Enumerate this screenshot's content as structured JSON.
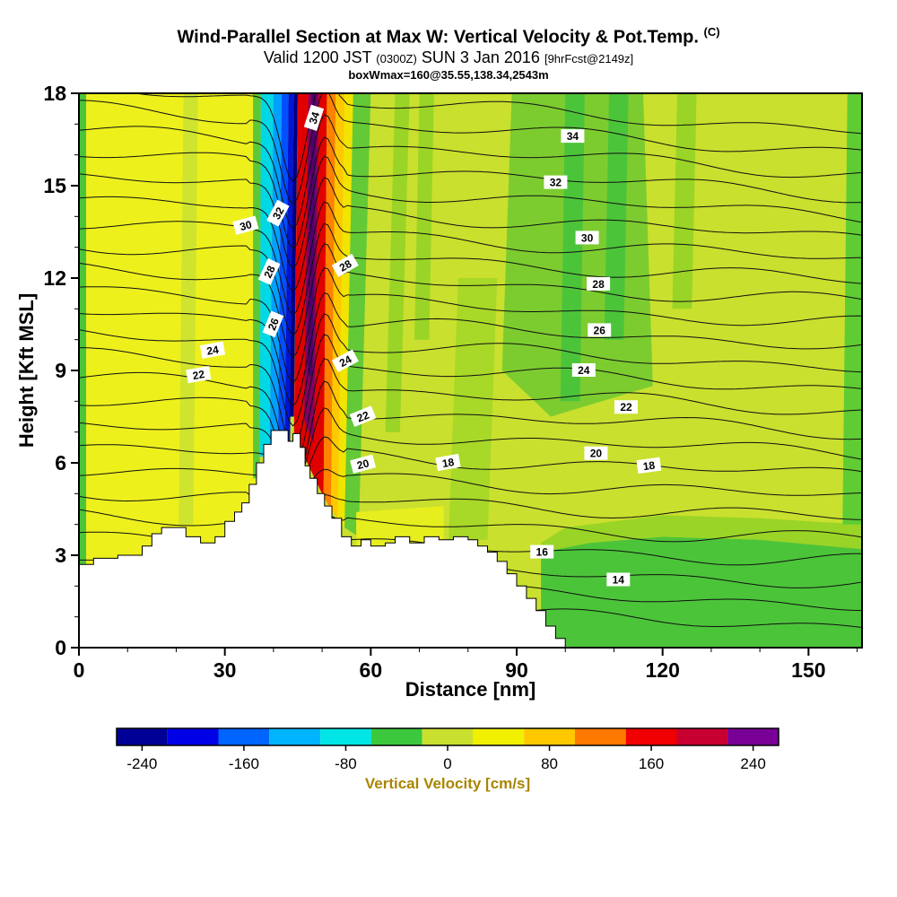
{
  "header": {
    "title_main": "Wind-Parallel Section at Max W: Vertical Velocity & Pot.Temp.",
    "title_unit": "(C)",
    "valid_prefix": "Valid 1200 JST",
    "valid_paren": "(0300Z)",
    "valid_date": "SUN 3 Jan 2016",
    "valid_fcst": "[9hrFcst@2149z]",
    "info_line": "boxWmax=160@35.55,138.34,2543m"
  },
  "axes": {
    "x": {
      "label": "Distance [nm]",
      "min": 0,
      "max": 161,
      "major_ticks": [
        0,
        30,
        60,
        90,
        120,
        150
      ],
      "minor_step": 10
    },
    "y": {
      "label": "Height [Kft MSL]",
      "min": 0,
      "max": 18,
      "major_ticks": [
        0,
        3,
        6,
        9,
        12,
        15,
        18
      ],
      "minor_step": 1
    }
  },
  "colorbar": {
    "label": "Vertical Velocity [cm/s]",
    "value_range": [
      -260,
      260
    ],
    "tick_values": [
      -240,
      -160,
      -80,
      0,
      80,
      160,
      240
    ],
    "segments": [
      {
        "from": -260,
        "to": -220,
        "color": "#000096"
      },
      {
        "from": -220,
        "to": -180,
        "color": "#0000e6"
      },
      {
        "from": -180,
        "to": -140,
        "color": "#0064ff"
      },
      {
        "from": -140,
        "to": -100,
        "color": "#00b4ff"
      },
      {
        "from": -100,
        "to": -60,
        "color": "#00e6e6"
      },
      {
        "from": -60,
        "to": -20,
        "color": "#3cc83c"
      },
      {
        "from": -20,
        "to": 20,
        "color": "#c9e02e"
      },
      {
        "from": 20,
        "to": 60,
        "color": "#f0f000"
      },
      {
        "from": 60,
        "to": 100,
        "color": "#ffc800"
      },
      {
        "from": 100,
        "to": 140,
        "color": "#ff7800"
      },
      {
        "from": 140,
        "to": 180,
        "color": "#f00000"
      },
      {
        "from": 180,
        "to": 220,
        "color": "#c80032"
      },
      {
        "from": 220,
        "to": 260,
        "color": "#780096"
      }
    ]
  },
  "chart_data": {
    "type": "heatmap",
    "title": "Wind-Parallel Section at Max W: Vertical Velocity & Pot.Temp. (C)",
    "subtitle": "Valid 1200 JST (0300Z) SUN 3 Jan 2016 [9hrFcst@2149z]",
    "annotation": "boxWmax=160@35.55,138.34,2543m",
    "xlabel": "Distance [nm]",
    "ylabel": "Height [Kft MSL]",
    "xlim": [
      0,
      161
    ],
    "ylim": [
      0,
      18
    ],
    "xticks": [
      0,
      30,
      60,
      90,
      120,
      150
    ],
    "yticks": [
      0,
      3,
      6,
      9,
      12,
      15,
      18
    ],
    "shaded_field": "Vertical Velocity [cm/s]",
    "base_color": "#c9e02e",
    "contour_field": {
      "name": "Potential Temperature [C]",
      "interval": 1,
      "levels": [
        12,
        13,
        14,
        15,
        16,
        17,
        18,
        19,
        20,
        21,
        22,
        23,
        24,
        25,
        26,
        27,
        28,
        29,
        30,
        31,
        32,
        33,
        34,
        35
      ],
      "labeled_levels": [
        14,
        16,
        18,
        20,
        22,
        24,
        26,
        28,
        30,
        32,
        34
      ]
    },
    "contour_labels": [
      {
        "v": "34",
        "x": 48.4,
        "h": 17.2,
        "r": -72
      },
      {
        "v": "34",
        "x": 101.5,
        "h": 16.6,
        "r": 0
      },
      {
        "v": "32",
        "x": 41.0,
        "h": 14.1,
        "r": -62
      },
      {
        "v": "32",
        "x": 98.0,
        "h": 15.1,
        "r": 0
      },
      {
        "v": "30",
        "x": 34.3,
        "h": 13.7,
        "r": -15
      },
      {
        "v": "30",
        "x": 104.5,
        "h": 13.3,
        "r": 0
      },
      {
        "v": "28",
        "x": 39.2,
        "h": 12.2,
        "r": -65
      },
      {
        "v": "28",
        "x": 54.8,
        "h": 12.4,
        "r": -30
      },
      {
        "v": "28",
        "x": 106.8,
        "h": 11.8,
        "r": 0
      },
      {
        "v": "26",
        "x": 40.0,
        "h": 10.5,
        "r": -68
      },
      {
        "v": "26",
        "x": 107.0,
        "h": 10.3,
        "r": 0
      },
      {
        "v": "24",
        "x": 27.5,
        "h": 9.65,
        "r": -10
      },
      {
        "v": "24",
        "x": 54.8,
        "h": 9.3,
        "r": -28
      },
      {
        "v": "24",
        "x": 103.8,
        "h": 9.0,
        "r": 0
      },
      {
        "v": "22",
        "x": 24.6,
        "h": 8.85,
        "r": -10
      },
      {
        "v": "22",
        "x": 58.4,
        "h": 7.5,
        "r": -22
      },
      {
        "v": "22",
        "x": 112.5,
        "h": 7.8,
        "r": 0
      },
      {
        "v": "20",
        "x": 58.4,
        "h": 5.95,
        "r": -15
      },
      {
        "v": "20",
        "x": 106.3,
        "h": 6.3,
        "r": 0
      },
      {
        "v": "18",
        "x": 75.9,
        "h": 6.0,
        "r": -10
      },
      {
        "v": "18",
        "x": 117.2,
        "h": 5.9,
        "r": -8
      },
      {
        "v": "16",
        "x": 95.2,
        "h": 3.1,
        "r": 0
      },
      {
        "v": "14",
        "x": 110.9,
        "h": 2.2,
        "r": 0
      }
    ],
    "terrain_profile": [
      [
        0,
        2.7
      ],
      [
        3,
        2.9
      ],
      [
        8,
        3.0
      ],
      [
        13,
        3.3
      ],
      [
        15,
        3.7
      ],
      [
        17,
        3.9
      ],
      [
        20,
        3.9
      ],
      [
        22,
        3.6
      ],
      [
        25,
        3.4
      ],
      [
        28,
        3.6
      ],
      [
        30,
        4.1
      ],
      [
        32,
        4.4
      ],
      [
        33.5,
        4.7
      ],
      [
        35,
        5.3
      ],
      [
        36.5,
        6.0
      ],
      [
        38,
        6.6
      ],
      [
        39.5,
        7.05
      ],
      [
        43,
        6.7
      ],
      [
        44,
        6.95
      ],
      [
        45.5,
        6.5
      ],
      [
        46.5,
        5.9
      ],
      [
        47.5,
        5.5
      ],
      [
        49,
        5.0
      ],
      [
        50.5,
        4.6
      ],
      [
        52,
        4.2
      ],
      [
        54,
        3.6
      ],
      [
        56,
        3.3
      ],
      [
        58,
        3.5
      ],
      [
        60,
        3.3
      ],
      [
        63,
        3.4
      ],
      [
        65,
        3.6
      ],
      [
        68,
        3.4
      ],
      [
        71,
        3.6
      ],
      [
        74,
        3.5
      ],
      [
        77,
        3.6
      ],
      [
        80,
        3.5
      ],
      [
        82,
        3.3
      ],
      [
        84,
        3.1
      ],
      [
        86,
        2.8
      ],
      [
        88,
        2.4
      ],
      [
        90,
        2.0
      ],
      [
        92,
        1.6
      ],
      [
        94,
        1.2
      ],
      [
        96,
        0.7
      ],
      [
        98,
        0.3
      ],
      [
        100,
        0
      ]
    ],
    "fill_regions": [
      {
        "name": "left-edge-green",
        "color": "#4cc43a",
        "pts": [
          [
            0,
            0
          ],
          [
            1.5,
            0
          ],
          [
            1.5,
            18
          ],
          [
            0,
            18
          ]
        ]
      },
      {
        "name": "windward-yellow-band",
        "color": "#eef01c",
        "pts": [
          [
            1.5,
            0
          ],
          [
            37,
            0
          ],
          [
            37,
            18
          ],
          [
            1.5,
            18
          ]
        ]
      },
      {
        "name": "yellow-band-streak",
        "color": "#cfe42e",
        "pts": [
          [
            20.5,
            4
          ],
          [
            23.5,
            4
          ],
          [
            24.5,
            18
          ],
          [
            21.5,
            18
          ]
        ]
      },
      {
        "name": "pre-wave-green-strip",
        "color": "#5cc838",
        "pts": [
          [
            35.8,
            5.5
          ],
          [
            37.2,
            5.5
          ],
          [
            37.4,
            18
          ],
          [
            35.8,
            18
          ]
        ]
      },
      {
        "name": "downdraft-cyan",
        "color": "#00d8e6",
        "pts": [
          [
            37.2,
            6.2
          ],
          [
            39.2,
            6.2
          ],
          [
            40.0,
            18
          ],
          [
            37.4,
            18
          ]
        ]
      },
      {
        "name": "downdraft-lightblue",
        "color": "#00a0ff",
        "pts": [
          [
            39.2,
            6.3
          ],
          [
            40.9,
            6.3
          ],
          [
            41.7,
            18
          ],
          [
            40.0,
            18
          ]
        ]
      },
      {
        "name": "downdraft-blue",
        "color": "#0050ff",
        "pts": [
          [
            40.9,
            6.4
          ],
          [
            42.3,
            6.4
          ],
          [
            43.1,
            18
          ],
          [
            41.7,
            18
          ]
        ]
      },
      {
        "name": "downdraft-deepblue",
        "color": "#0014d2",
        "pts": [
          [
            42.3,
            6.5
          ],
          [
            43.4,
            6.5
          ],
          [
            44.2,
            18
          ],
          [
            43.1,
            18
          ]
        ]
      },
      {
        "name": "downdraft-navy",
        "color": "#000082",
        "pts": [
          [
            43.4,
            7.5
          ],
          [
            44.2,
            7.5
          ],
          [
            45.0,
            18
          ],
          [
            44.2,
            18
          ]
        ]
      },
      {
        "name": "updraft-red",
        "color": "#e10000",
        "pts": [
          [
            44.2,
            6.9
          ],
          [
            50.3,
            4.9
          ],
          [
            51.0,
            18
          ],
          [
            45.0,
            18
          ]
        ]
      },
      {
        "name": "updraft-purple-core",
        "color": "#820064",
        "pts": [
          [
            46.3,
            7.4
          ],
          [
            48.3,
            6.6
          ],
          [
            49.3,
            18
          ],
          [
            47.2,
            18
          ]
        ]
      },
      {
        "name": "updraft-dark-core",
        "color": "#50006e",
        "pts": [
          [
            47.0,
            9.0
          ],
          [
            48.0,
            8.6
          ],
          [
            48.8,
            18
          ],
          [
            47.8,
            18
          ]
        ]
      },
      {
        "name": "updraft-orange",
        "color": "#ff8200",
        "pts": [
          [
            50.3,
            4.9
          ],
          [
            51.8,
            4.5
          ],
          [
            52.8,
            18
          ],
          [
            51.0,
            18
          ]
        ]
      },
      {
        "name": "updraft-gold",
        "color": "#ffc800",
        "pts": [
          [
            51.8,
            4.5
          ],
          [
            53.2,
            4.2
          ],
          [
            54.6,
            18
          ],
          [
            52.8,
            18
          ]
        ]
      },
      {
        "name": "updraft-yellow-fringe",
        "color": "#f0e400",
        "pts": [
          [
            53.2,
            4.2
          ],
          [
            54.6,
            3.9
          ],
          [
            56.4,
            18
          ],
          [
            54.6,
            18
          ]
        ]
      },
      {
        "name": "lee-green-band",
        "color": "#64c936",
        "pts": [
          [
            54.6,
            3.9
          ],
          [
            57.5,
            3.6
          ],
          [
            60.0,
            18
          ],
          [
            56.4,
            18
          ]
        ]
      },
      {
        "name": "lee-yellow-patch",
        "color": "#e6ee1e",
        "pts": [
          [
            57,
            3.3
          ],
          [
            75,
            3.4
          ],
          [
            75,
            4.6
          ],
          [
            57,
            4.4
          ]
        ]
      },
      {
        "name": "mid-green-streak-1",
        "color": "#9ad426",
        "pts": [
          [
            63,
            7
          ],
          [
            66,
            7
          ],
          [
            68,
            18
          ],
          [
            65,
            18
          ]
        ]
      },
      {
        "name": "mid-green-streak-2",
        "color": "#9ad426",
        "pts": [
          [
            69,
            10
          ],
          [
            72,
            10
          ],
          [
            73,
            18
          ],
          [
            70,
            18
          ]
        ]
      },
      {
        "name": "mid-green-blob",
        "color": "#a8d828",
        "pts": [
          [
            76,
            3.5
          ],
          [
            84,
            3.5
          ],
          [
            86,
            12
          ],
          [
            78,
            12
          ]
        ]
      },
      {
        "name": "right-green-zone",
        "color": "#7ccc30",
        "pts": [
          [
            87,
            9
          ],
          [
            97,
            7.5
          ],
          [
            118,
            8.5
          ],
          [
            116,
            18
          ],
          [
            89,
            18
          ]
        ]
      },
      {
        "name": "right-green-streak-1",
        "color": "#4cc43a",
        "pts": [
          [
            99,
            8
          ],
          [
            103,
            8
          ],
          [
            104,
            18
          ],
          [
            100,
            18
          ]
        ]
      },
      {
        "name": "right-green-streak-2",
        "color": "#4cc43a",
        "pts": [
          [
            108,
            10
          ],
          [
            112,
            10
          ],
          [
            113,
            18
          ],
          [
            109,
            18
          ]
        ]
      },
      {
        "name": "right-green-streak-3",
        "color": "#9ad426",
        "pts": [
          [
            122,
            11
          ],
          [
            126,
            11
          ],
          [
            127,
            18
          ],
          [
            123,
            18
          ]
        ]
      },
      {
        "name": "lower-right-green",
        "color": "#4cc43a",
        "pts": [
          [
            95,
            0
          ],
          [
            161,
            0
          ],
          [
            161,
            3.2
          ],
          [
            140,
            3.5
          ],
          [
            120,
            3.6
          ],
          [
            105,
            3.4
          ],
          [
            95,
            3.1
          ]
        ]
      },
      {
        "name": "lower-right-green-fringe",
        "color": "#9ad426",
        "pts": [
          [
            95,
            3.1
          ],
          [
            105,
            3.4
          ],
          [
            120,
            3.6
          ],
          [
            140,
            3.5
          ],
          [
            161,
            3.2
          ],
          [
            161,
            4.0
          ],
          [
            140,
            4.2
          ],
          [
            120,
            4.3
          ],
          [
            100,
            3.9
          ],
          [
            95,
            3.4
          ]
        ]
      },
      {
        "name": "right-edge-green-strip",
        "color": "#5fcc34",
        "pts": [
          [
            157,
            4
          ],
          [
            161,
            4
          ],
          [
            161,
            18
          ],
          [
            158,
            18
          ]
        ]
      }
    ],
    "features": {
      "downdraft_band": {
        "x_nm_range": [
          37,
          44.2
        ],
        "peak_w_cms": -240
      },
      "updraft_band": {
        "x_nm_range": [
          44.2,
          54.6
        ],
        "peak_w_cms": 250
      },
      "mountain_peak": {
        "x_nm": 41,
        "height_kft": 7.0
      }
    }
  }
}
